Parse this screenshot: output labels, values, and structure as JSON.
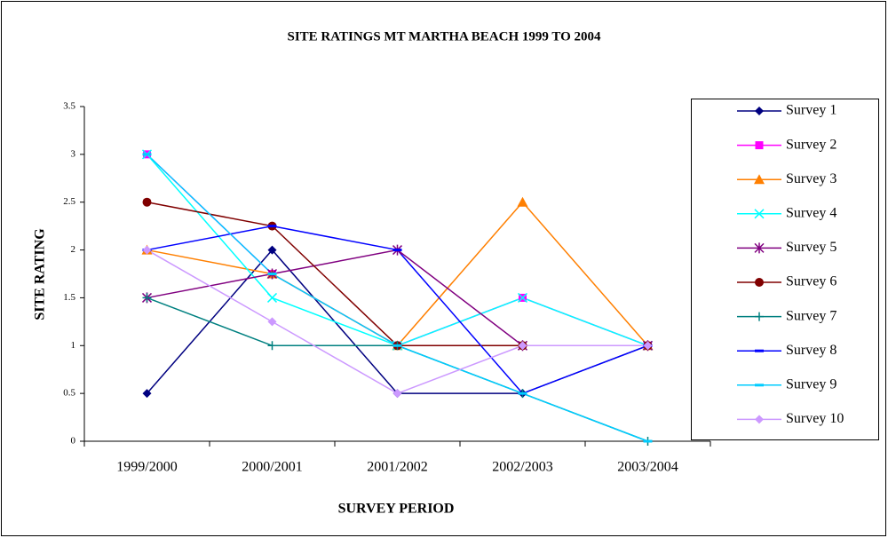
{
  "chart_data": {
    "type": "line",
    "title": "SITE RATINGS MT MARTHA BEACH 1999 TO 2004",
    "x_label": "SURVEY PERIOD",
    "y_label": "SITE RATING",
    "categories": [
      "1999/2000",
      "2000/2001",
      "2001/2002",
      "2002/2003",
      "2003/2004"
    ],
    "ylim": [
      0,
      3.5
    ],
    "yticks": [
      0,
      0.5,
      1,
      1.5,
      2,
      2.5,
      3,
      3.5
    ],
    "grid": false,
    "legend": "right",
    "series": [
      {
        "name": "Survey 1",
        "color": "#000080",
        "marker": "diamond",
        "values": [
          0.5,
          2,
          0.5,
          0.5,
          1
        ]
      },
      {
        "name": "Survey 2",
        "color": "#ff00ff",
        "marker": "square",
        "values": [
          3,
          1.75,
          1,
          1.5,
          1
        ]
      },
      {
        "name": "Survey 3",
        "color": "#ff7f00",
        "marker": "triangle",
        "values": [
          2,
          1.75,
          1,
          2.5,
          1
        ]
      },
      {
        "name": "Survey 4",
        "color": "#00ffff",
        "marker": "x",
        "values": [
          3,
          1.5,
          1,
          1.5,
          1
        ]
      },
      {
        "name": "Survey 5",
        "color": "#800080",
        "marker": "star",
        "values": [
          1.5,
          1.75,
          2,
          1,
          1
        ]
      },
      {
        "name": "Survey 6",
        "color": "#800000",
        "marker": "circle",
        "values": [
          2.5,
          2.25,
          1,
          1,
          1
        ]
      },
      {
        "name": "Survey 7",
        "color": "#008080",
        "marker": "plus",
        "values": [
          1.5,
          1,
          1,
          0.5,
          0
        ]
      },
      {
        "name": "Survey 8",
        "color": "#0000ff",
        "marker": "dash",
        "values": [
          2,
          2.25,
          2,
          0.5,
          1
        ]
      },
      {
        "name": "Survey 9",
        "color": "#00ccff",
        "marker": "dash",
        "values": [
          3,
          1.75,
          1,
          0.5,
          0
        ]
      },
      {
        "name": "Survey 10",
        "color": "#cc99ff",
        "marker": "diamond",
        "values": [
          2,
          1.25,
          0.5,
          1,
          1
        ]
      }
    ]
  }
}
